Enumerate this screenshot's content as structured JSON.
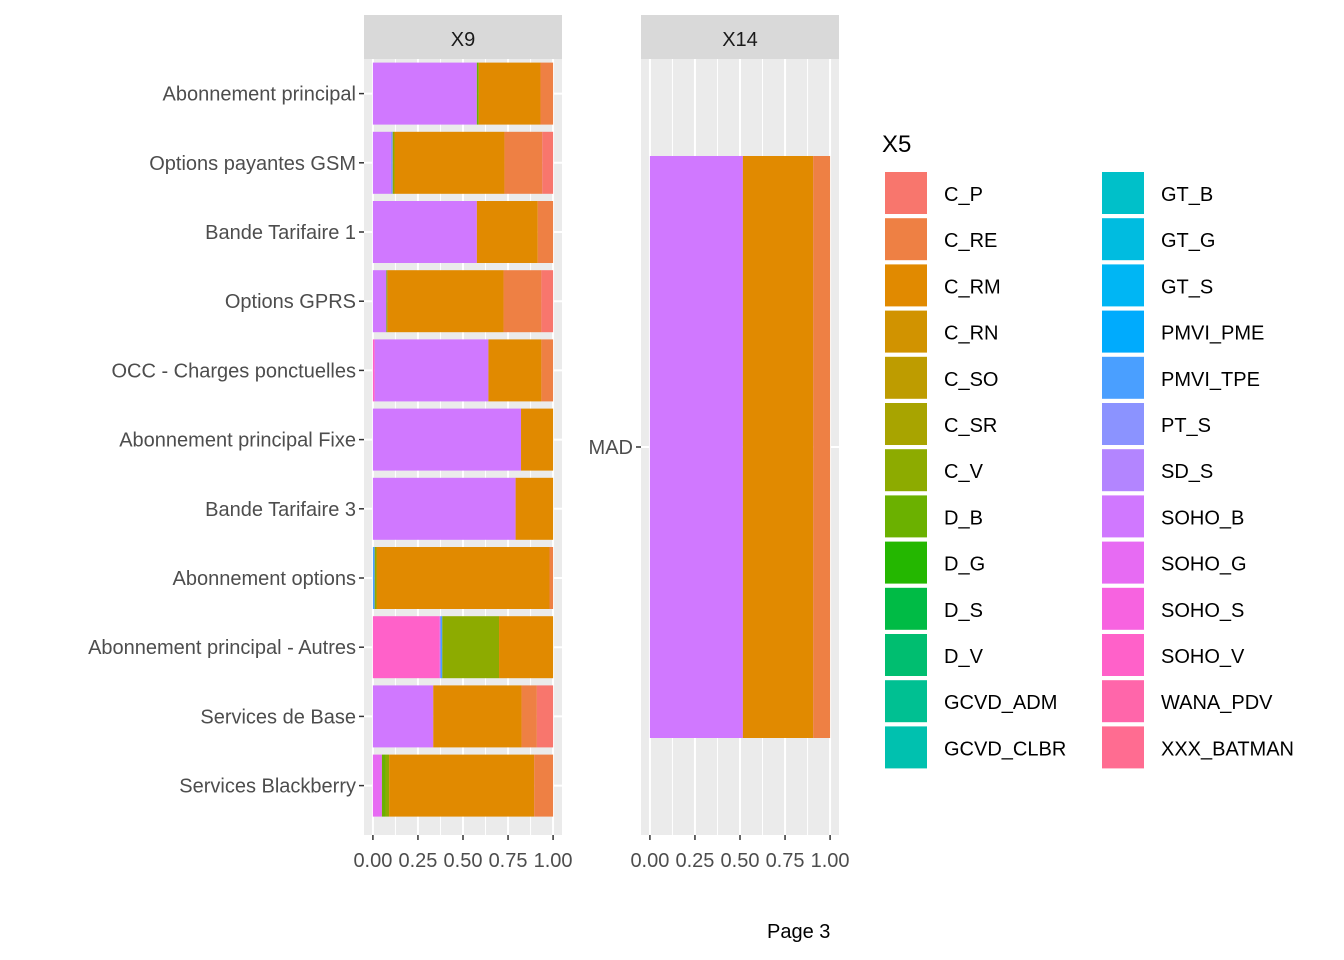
{
  "chart_data": {
    "type": "bar",
    "orientation": "horizontal",
    "stacked": "fill",
    "grid": true,
    "legend_position": "right",
    "legend": {
      "title": "X5",
      "entries": [
        {
          "name": "C_P",
          "color": "#F8766D"
        },
        {
          "name": "C_RE",
          "color": "#EE8044"
        },
        {
          "name": "C_RM",
          "color": "#E18A00"
        },
        {
          "name": "C_RN",
          "color": "#D19300"
        },
        {
          "name": "C_SO",
          "color": "#BE9C00"
        },
        {
          "name": "C_SR",
          "color": "#A8A400"
        },
        {
          "name": "C_V",
          "color": "#8DAB00"
        },
        {
          "name": "D_B",
          "color": "#6BB100"
        },
        {
          "name": "D_G",
          "color": "#24B700"
        },
        {
          "name": "D_S",
          "color": "#00BB45"
        },
        {
          "name": "D_V",
          "color": "#00BE70"
        },
        {
          "name": "GCVD_ADM",
          "color": "#00C092"
        },
        {
          "name": "GCVD_CLBR",
          "color": "#00C1AF"
        },
        {
          "name": "GT_B",
          "color": "#00C0C9"
        },
        {
          "name": "GT_G",
          "color": "#00BCE0"
        },
        {
          "name": "GT_S",
          "color": "#00B6F4"
        },
        {
          "name": "PMVI_PME",
          "color": "#00ABFD"
        },
        {
          "name": "PMVI_TPE",
          "color": "#4A9FFF"
        },
        {
          "name": "PT_S",
          "color": "#8B93FF"
        },
        {
          "name": "SD_S",
          "color": "#B385FF"
        },
        {
          "name": "SOHO_B",
          "color": "#D078FF"
        },
        {
          "name": "SOHO_G",
          "color": "#E76BF3"
        },
        {
          "name": "SOHO_S",
          "color": "#F763E0"
        },
        {
          "name": "SOHO_V",
          "color": "#FF61C9"
        },
        {
          "name": "WANA_PDV",
          "color": "#FF66AA"
        },
        {
          "name": "XXX_BATMAN",
          "color": "#FF6C91"
        }
      ]
    },
    "panels": [
      {
        "title": "X9",
        "xlim": [
          0,
          1
        ],
        "x_ticks": [
          "0.00",
          "0.25",
          "0.50",
          "0.75",
          "1.00"
        ],
        "categories": [
          {
            "label": "Abonnement principal",
            "segments": [
              [
                "SOHO_B",
                0.577
              ],
              [
                "D_B",
                0.01
              ],
              [
                "C_RM",
                0.343
              ],
              [
                "C_RE",
                0.07
              ]
            ]
          },
          {
            "label": "Options payantes GSM",
            "segments": [
              [
                "SOHO_B",
                0.1
              ],
              [
                "PT_S",
                0.01
              ],
              [
                "C_V",
                0.01
              ],
              [
                "C_RM",
                0.61
              ],
              [
                "C_RE",
                0.21
              ],
              [
                "C_P",
                0.06
              ]
            ]
          },
          {
            "label": "Bande Tarifaire 1",
            "segments": [
              [
                "SOHO_B",
                0.577
              ],
              [
                "C_RM",
                0.338
              ],
              [
                "C_RE",
                0.085
              ]
            ]
          },
          {
            "label": "Options GPRS",
            "segments": [
              [
                "SOHO_B",
                0.075
              ],
              [
                "D_B",
                0.005
              ],
              [
                "C_RM",
                0.645
              ],
              [
                "C_RE",
                0.21
              ],
              [
                "C_P",
                0.065
              ]
            ]
          },
          {
            "label": "OCC - Charges ponctuelles",
            "segments": [
              [
                "SOHO_V",
                0.01
              ],
              [
                "SOHO_B",
                0.631
              ],
              [
                "C_RM",
                0.294
              ],
              [
                "C_RE",
                0.065
              ]
            ]
          },
          {
            "label": "Abonnement principal Fixe",
            "segments": [
              [
                "SOHO_B",
                0.822
              ],
              [
                "C_RM",
                0.178
              ]
            ]
          },
          {
            "label": "Bande Tarifaire 3",
            "segments": [
              [
                "SOHO_B",
                0.792
              ],
              [
                "C_RM",
                0.208
              ]
            ]
          },
          {
            "label": "Abonnement options",
            "segments": [
              [
                "PMVI_TPE",
                0.01
              ],
              [
                "C_V",
                0.01
              ],
              [
                "C_RM",
                0.96
              ],
              [
                "C_RE",
                0.02
              ]
            ]
          },
          {
            "label": "Abonnement principal - Autres",
            "segments": [
              [
                "SOHO_V",
                0.37
              ],
              [
                "SOHO_B",
                0.005
              ],
              [
                "PMVI_TPE",
                0.01
              ],
              [
                "C_V",
                0.315
              ],
              [
                "C_RM",
                0.3
              ]
            ]
          },
          {
            "label": "Services de Base",
            "segments": [
              [
                "SOHO_B",
                0.335
              ],
              [
                "C_RM",
                0.49
              ],
              [
                "C_RE",
                0.085
              ],
              [
                "C_P",
                0.09
              ]
            ]
          },
          {
            "label": "Services Blackberry",
            "segments": [
              [
                "SOHO_G",
                0.05
              ],
              [
                "D_B",
                0.02
              ],
              [
                "C_V",
                0.02
              ],
              [
                "C_RM",
                0.805
              ],
              [
                "C_RE",
                0.105
              ]
            ]
          }
        ]
      },
      {
        "title": "X14",
        "xlim": [
          0,
          1
        ],
        "x_ticks": [
          "0.00",
          "0.25",
          "0.50",
          "0.75",
          "1.00"
        ],
        "categories": [
          {
            "label": "MAD",
            "segments": [
              [
                "SOHO_B",
                0.516
              ],
              [
                "C_RM",
                0.39
              ],
              [
                "C_RE",
                0.094
              ]
            ]
          }
        ]
      }
    ]
  },
  "footer": {
    "page_label": "Page 3"
  }
}
